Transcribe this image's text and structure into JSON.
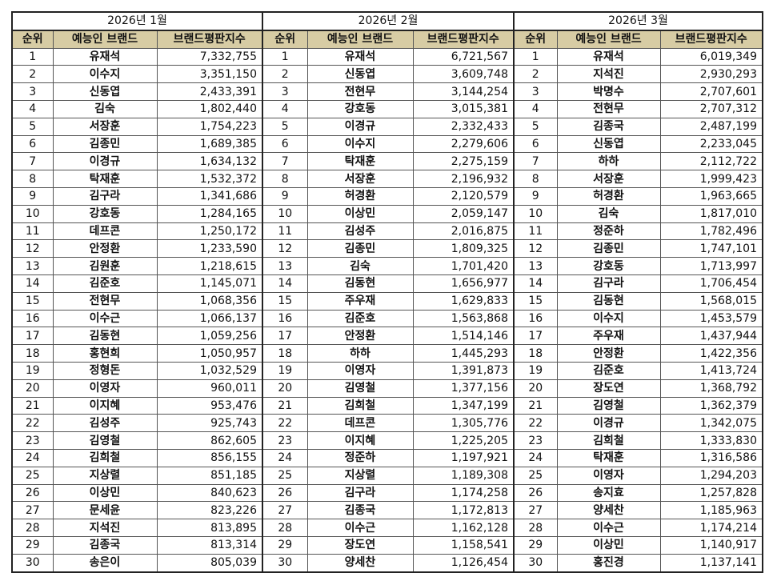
{
  "headers": {
    "rank": "순위",
    "name": "예능인 브랜드",
    "score": "브랜드평판지수"
  },
  "colors": {
    "header_bg": "#d7cca4",
    "border": "#222222"
  },
  "months": [
    {
      "title": "2026년 1월",
      "rows": [
        {
          "rank": "1",
          "name": "유재석",
          "score": "7,332,755"
        },
        {
          "rank": "2",
          "name": "이수지",
          "score": "3,351,150"
        },
        {
          "rank": "3",
          "name": "신동엽",
          "score": "2,433,391"
        },
        {
          "rank": "4",
          "name": "김숙",
          "score": "1,802,440"
        },
        {
          "rank": "5",
          "name": "서장훈",
          "score": "1,754,223"
        },
        {
          "rank": "6",
          "name": "김종민",
          "score": "1,689,385"
        },
        {
          "rank": "7",
          "name": "이경규",
          "score": "1,634,132"
        },
        {
          "rank": "8",
          "name": "탁재훈",
          "score": "1,532,372"
        },
        {
          "rank": "9",
          "name": "김구라",
          "score": "1,341,686"
        },
        {
          "rank": "10",
          "name": "강호동",
          "score": "1,284,165"
        },
        {
          "rank": "11",
          "name": "데프콘",
          "score": "1,250,172"
        },
        {
          "rank": "12",
          "name": "안정환",
          "score": "1,233,590"
        },
        {
          "rank": "13",
          "name": "김원훈",
          "score": "1,218,615"
        },
        {
          "rank": "14",
          "name": "김준호",
          "score": "1,145,071"
        },
        {
          "rank": "15",
          "name": "전현무",
          "score": "1,068,356"
        },
        {
          "rank": "16",
          "name": "이수근",
          "score": "1,066,137"
        },
        {
          "rank": "17",
          "name": "김동현",
          "score": "1,059,256"
        },
        {
          "rank": "18",
          "name": "홍현희",
          "score": "1,050,957"
        },
        {
          "rank": "19",
          "name": "정형돈",
          "score": "1,032,529"
        },
        {
          "rank": "20",
          "name": "이영자",
          "score": "960,011"
        },
        {
          "rank": "21",
          "name": "이지혜",
          "score": "953,476"
        },
        {
          "rank": "22",
          "name": "김성주",
          "score": "925,743"
        },
        {
          "rank": "23",
          "name": "김영철",
          "score": "862,605"
        },
        {
          "rank": "24",
          "name": "김희철",
          "score": "856,155"
        },
        {
          "rank": "25",
          "name": "지상렬",
          "score": "851,185"
        },
        {
          "rank": "26",
          "name": "이상민",
          "score": "840,623"
        },
        {
          "rank": "27",
          "name": "문세윤",
          "score": "823,226"
        },
        {
          "rank": "28",
          "name": "지석진",
          "score": "813,895"
        },
        {
          "rank": "29",
          "name": "김종국",
          "score": "813,314"
        },
        {
          "rank": "30",
          "name": "송은이",
          "score": "805,039"
        }
      ]
    },
    {
      "title": "2026년 2월",
      "rows": [
        {
          "rank": "1",
          "name": "유재석",
          "score": "6,721,567"
        },
        {
          "rank": "2",
          "name": "신동엽",
          "score": "3,609,748"
        },
        {
          "rank": "3",
          "name": "전현무",
          "score": "3,144,254"
        },
        {
          "rank": "4",
          "name": "강호동",
          "score": "3,015,381"
        },
        {
          "rank": "5",
          "name": "이경규",
          "score": "2,332,433"
        },
        {
          "rank": "6",
          "name": "이수지",
          "score": "2,279,606"
        },
        {
          "rank": "7",
          "name": "탁재훈",
          "score": "2,275,159"
        },
        {
          "rank": "8",
          "name": "서장훈",
          "score": "2,196,932"
        },
        {
          "rank": "9",
          "name": "허경환",
          "score": "2,120,579"
        },
        {
          "rank": "10",
          "name": "이상민",
          "score": "2,059,147"
        },
        {
          "rank": "11",
          "name": "김성주",
          "score": "2,016,875"
        },
        {
          "rank": "12",
          "name": "김종민",
          "score": "1,809,325"
        },
        {
          "rank": "13",
          "name": "김숙",
          "score": "1,701,420"
        },
        {
          "rank": "14",
          "name": "김동현",
          "score": "1,656,977"
        },
        {
          "rank": "15",
          "name": "주우재",
          "score": "1,629,833"
        },
        {
          "rank": "16",
          "name": "김준호",
          "score": "1,563,868"
        },
        {
          "rank": "17",
          "name": "안정환",
          "score": "1,514,146"
        },
        {
          "rank": "18",
          "name": "하하",
          "score": "1,445,293"
        },
        {
          "rank": "19",
          "name": "이영자",
          "score": "1,391,873"
        },
        {
          "rank": "20",
          "name": "김영철",
          "score": "1,377,156"
        },
        {
          "rank": "21",
          "name": "김희철",
          "score": "1,347,199"
        },
        {
          "rank": "22",
          "name": "데프콘",
          "score": "1,305,776"
        },
        {
          "rank": "23",
          "name": "이지혜",
          "score": "1,225,205"
        },
        {
          "rank": "24",
          "name": "정준하",
          "score": "1,197,921"
        },
        {
          "rank": "25",
          "name": "지상렬",
          "score": "1,189,308"
        },
        {
          "rank": "26",
          "name": "김구라",
          "score": "1,174,258"
        },
        {
          "rank": "27",
          "name": "김종국",
          "score": "1,172,813"
        },
        {
          "rank": "28",
          "name": "이수근",
          "score": "1,162,128"
        },
        {
          "rank": "29",
          "name": "장도연",
          "score": "1,158,541"
        },
        {
          "rank": "30",
          "name": "양세찬",
          "score": "1,126,454"
        }
      ]
    },
    {
      "title": "2026년 3월",
      "rows": [
        {
          "rank": "1",
          "name": "유재석",
          "score": "6,019,349"
        },
        {
          "rank": "2",
          "name": "지석진",
          "score": "2,930,293"
        },
        {
          "rank": "3",
          "name": "박명수",
          "score": "2,707,601"
        },
        {
          "rank": "4",
          "name": "전현무",
          "score": "2,707,312"
        },
        {
          "rank": "5",
          "name": "김종국",
          "score": "2,487,199"
        },
        {
          "rank": "6",
          "name": "신동엽",
          "score": "2,233,045"
        },
        {
          "rank": "7",
          "name": "하하",
          "score": "2,112,722"
        },
        {
          "rank": "8",
          "name": "서장훈",
          "score": "1,999,423"
        },
        {
          "rank": "9",
          "name": "허경환",
          "score": "1,963,665"
        },
        {
          "rank": "10",
          "name": "김숙",
          "score": "1,817,010"
        },
        {
          "rank": "11",
          "name": "정준하",
          "score": "1,782,496"
        },
        {
          "rank": "12",
          "name": "김종민",
          "score": "1,747,101"
        },
        {
          "rank": "13",
          "name": "강호동",
          "score": "1,713,997"
        },
        {
          "rank": "14",
          "name": "김구라",
          "score": "1,706,454"
        },
        {
          "rank": "15",
          "name": "김동현",
          "score": "1,568,015"
        },
        {
          "rank": "16",
          "name": "이수지",
          "score": "1,453,579"
        },
        {
          "rank": "17",
          "name": "주우재",
          "score": "1,437,944"
        },
        {
          "rank": "18",
          "name": "안정환",
          "score": "1,422,356"
        },
        {
          "rank": "19",
          "name": "김준호",
          "score": "1,413,724"
        },
        {
          "rank": "20",
          "name": "장도연",
          "score": "1,368,792"
        },
        {
          "rank": "21",
          "name": "김영철",
          "score": "1,362,379"
        },
        {
          "rank": "22",
          "name": "이경규",
          "score": "1,342,075"
        },
        {
          "rank": "23",
          "name": "김희철",
          "score": "1,333,830"
        },
        {
          "rank": "24",
          "name": "탁재훈",
          "score": "1,316,586"
        },
        {
          "rank": "25",
          "name": "이영자",
          "score": "1,294,203"
        },
        {
          "rank": "26",
          "name": "송지효",
          "score": "1,257,828"
        },
        {
          "rank": "27",
          "name": "양세찬",
          "score": "1,185,963"
        },
        {
          "rank": "28",
          "name": "이수근",
          "score": "1,174,214"
        },
        {
          "rank": "29",
          "name": "이상민",
          "score": "1,140,917"
        },
        {
          "rank": "30",
          "name": "홍진경",
          "score": "1,137,141"
        }
      ]
    }
  ]
}
